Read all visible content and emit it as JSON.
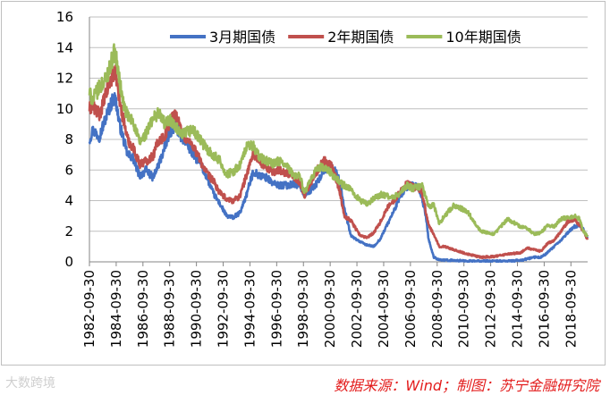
{
  "watermark": "大数跨境",
  "source_note": "数据来源：Wind；制图：苏宁金融研究院",
  "chart_data": {
    "type": "line",
    "title": "",
    "xlabel": "",
    "ylabel": "",
    "ylim": [
      0,
      16
    ],
    "yticks": [
      0,
      2,
      4,
      6,
      8,
      10,
      12,
      14,
      16
    ],
    "xlim": [
      1982.75,
      2020.0
    ],
    "xticks": [
      "1982-09-30",
      "1984-09-30",
      "1986-09-30",
      "1988-09-30",
      "1990-09-30",
      "1992-09-30",
      "1994-09-30",
      "1996-09-30",
      "1998-09-30",
      "2000-09-30",
      "2002-09-30",
      "2004-09-30",
      "2006-09-30",
      "2008-09-30",
      "2010-09-30",
      "2012-09-30",
      "2014-09-30",
      "2016-09-30",
      "2018-09-30"
    ],
    "grid": "horizontal",
    "legend_position": "top",
    "series": [
      {
        "name": "3月期国债",
        "color": "#4472c4",
        "x": [
          1982.75,
          1983.0,
          1983.5,
          1984.0,
          1984.3,
          1984.6,
          1984.75,
          1985.0,
          1985.3,
          1985.6,
          1986.0,
          1986.5,
          1987.0,
          1987.5,
          1987.9,
          1988.4,
          1988.75,
          1989.2,
          1989.6,
          1990.0,
          1990.5,
          1991.0,
          1991.5,
          1992.0,
          1992.5,
          1993.0,
          1993.5,
          1994.0,
          1994.5,
          1995.0,
          1995.5,
          1996.0,
          1996.5,
          1997.0,
          1997.5,
          1998.0,
          1998.5,
          1998.8,
          1999.3,
          1999.8,
          2000.3,
          2000.8,
          2001.1,
          2001.5,
          2001.8,
          2002.3,
          2003.0,
          2003.5,
          2004.0,
          2004.5,
          2005.0,
          2005.5,
          2006.0,
          2006.5,
          2006.9,
          2007.3,
          2007.6,
          2007.9,
          2008.1,
          2008.5,
          2008.9,
          2009.3,
          2010.0,
          2011.0,
          2012.0,
          2013.0,
          2014.0,
          2015.0,
          2015.5,
          2016.0,
          2016.5,
          2017.0,
          2017.5,
          2018.0,
          2018.5,
          2019.0,
          2019.4,
          2019.7,
          2019.95
        ],
        "values": [
          8.0,
          8.6,
          8.2,
          9.5,
          10.2,
          10.8,
          10.4,
          9.0,
          8.0,
          7.0,
          6.8,
          5.6,
          6.0,
          5.5,
          6.3,
          7.5,
          8.5,
          8.9,
          8.2,
          7.8,
          7.0,
          6.5,
          5.6,
          4.5,
          3.8,
          3.0,
          2.9,
          3.2,
          4.4,
          5.9,
          5.6,
          5.5,
          5.1,
          5.0,
          5.0,
          5.1,
          5.0,
          4.4,
          4.7,
          5.2,
          6.0,
          6.2,
          6.0,
          5.2,
          3.5,
          1.7,
          1.3,
          1.1,
          1.0,
          1.5,
          2.4,
          3.3,
          4.3,
          4.9,
          5.0,
          4.9,
          4.2,
          3.0,
          1.5,
          0.3,
          0.15,
          0.1,
          0.1,
          0.05,
          0.05,
          0.05,
          0.05,
          0.1,
          0.2,
          0.3,
          0.3,
          0.6,
          1.0,
          1.4,
          1.9,
          2.3,
          2.4,
          2.1,
          1.6
        ]
      },
      {
        "name": "2年期国债",
        "color": "#c0504d",
        "x": [
          1982.75,
          1983.0,
          1983.5,
          1984.0,
          1984.3,
          1984.6,
          1984.75,
          1985.0,
          1985.3,
          1985.6,
          1986.0,
          1986.5,
          1987.0,
          1987.5,
          1987.9,
          1988.4,
          1988.75,
          1989.2,
          1989.6,
          1990.0,
          1990.5,
          1991.0,
          1991.5,
          1992.0,
          1992.5,
          1993.0,
          1993.5,
          1994.0,
          1994.5,
          1995.0,
          1995.5,
          1996.0,
          1996.5,
          1997.0,
          1997.5,
          1998.0,
          1998.5,
          1998.8,
          1999.3,
          1999.8,
          2000.3,
          2000.8,
          2001.1,
          2001.5,
          2001.8,
          2002.3,
          2003.0,
          2003.5,
          2004.0,
          2004.5,
          2005.0,
          2005.5,
          2006.0,
          2006.5,
          2006.9,
          2007.3,
          2007.6,
          2007.9,
          2008.1,
          2008.5,
          2008.9,
          2009.3,
          2010.0,
          2011.0,
          2012.0,
          2013.0,
          2014.0,
          2015.0,
          2015.5,
          2016.0,
          2016.5,
          2017.0,
          2017.5,
          2018.0,
          2018.5,
          2019.0,
          2019.4,
          2019.7,
          2019.95
        ],
        "values": [
          10.0,
          10.2,
          9.6,
          11.0,
          11.8,
          12.4,
          12.2,
          10.5,
          9.3,
          8.0,
          7.5,
          6.4,
          6.6,
          6.9,
          7.9,
          8.2,
          9.2,
          9.7,
          8.6,
          8.0,
          7.6,
          6.7,
          5.8,
          5.3,
          4.5,
          4.1,
          4.0,
          4.3,
          5.7,
          7.1,
          6.5,
          6.2,
          5.9,
          6.0,
          5.8,
          5.6,
          5.2,
          4.3,
          5.2,
          6.0,
          6.6,
          6.3,
          5.7,
          4.5,
          3.0,
          2.7,
          1.7,
          1.6,
          1.9,
          2.6,
          3.5,
          4.0,
          4.6,
          5.1,
          4.9,
          4.8,
          4.6,
          3.3,
          2.4,
          1.8,
          1.0,
          1.0,
          0.8,
          0.5,
          0.3,
          0.35,
          0.5,
          0.6,
          0.9,
          0.8,
          0.7,
          1.2,
          1.4,
          2.0,
          2.6,
          2.8,
          2.4,
          2.0,
          1.5
        ]
      },
      {
        "name": "10年期国债",
        "color": "#9bbb59",
        "x": [
          1982.75,
          1983.0,
          1983.5,
          1984.0,
          1984.3,
          1984.6,
          1984.75,
          1985.0,
          1985.3,
          1985.6,
          1986.0,
          1986.5,
          1987.0,
          1987.5,
          1987.9,
          1988.4,
          1988.75,
          1989.2,
          1989.6,
          1990.0,
          1990.5,
          1991.0,
          1991.5,
          1992.0,
          1992.5,
          1993.0,
          1993.5,
          1994.0,
          1994.5,
          1995.0,
          1995.5,
          1996.0,
          1996.5,
          1997.0,
          1997.5,
          1998.0,
          1998.5,
          1998.8,
          1999.3,
          1999.8,
          2000.3,
          2000.8,
          2001.1,
          2001.5,
          2001.8,
          2002.3,
          2003.0,
          2003.5,
          2004.0,
          2004.5,
          2005.0,
          2005.5,
          2006.0,
          2006.5,
          2006.9,
          2007.3,
          2007.6,
          2007.9,
          2008.1,
          2008.5,
          2008.9,
          2009.3,
          2010.0,
          2011.0,
          2012.0,
          2013.0,
          2014.0,
          2015.0,
          2015.5,
          2016.0,
          2016.5,
          2017.0,
          2017.5,
          2018.0,
          2018.5,
          2019.0,
          2019.4,
          2019.7,
          2019.95
        ],
        "values": [
          11.0,
          10.6,
          11.4,
          12.0,
          12.8,
          13.7,
          13.3,
          11.8,
          10.3,
          9.5,
          9.2,
          7.8,
          8.4,
          9.3,
          9.8,
          9.0,
          9.3,
          8.8,
          8.2,
          8.5,
          8.6,
          8.0,
          7.4,
          7.0,
          6.6,
          5.7,
          5.9,
          6.3,
          7.5,
          7.6,
          6.8,
          6.6,
          6.4,
          6.6,
          6.2,
          5.7,
          5.6,
          4.5,
          5.3,
          6.2,
          6.1,
          5.8,
          5.5,
          5.2,
          5.0,
          4.7,
          4.0,
          3.8,
          4.1,
          4.4,
          4.3,
          4.2,
          4.5,
          5.0,
          4.8,
          4.9,
          5.0,
          4.2,
          3.6,
          3.7,
          2.5,
          3.0,
          3.7,
          3.3,
          2.0,
          1.8,
          2.8,
          2.3,
          2.2,
          1.8,
          1.9,
          2.4,
          2.3,
          2.8,
          2.9,
          3.0,
          2.8,
          2.0,
          1.7
        ]
      }
    ]
  }
}
